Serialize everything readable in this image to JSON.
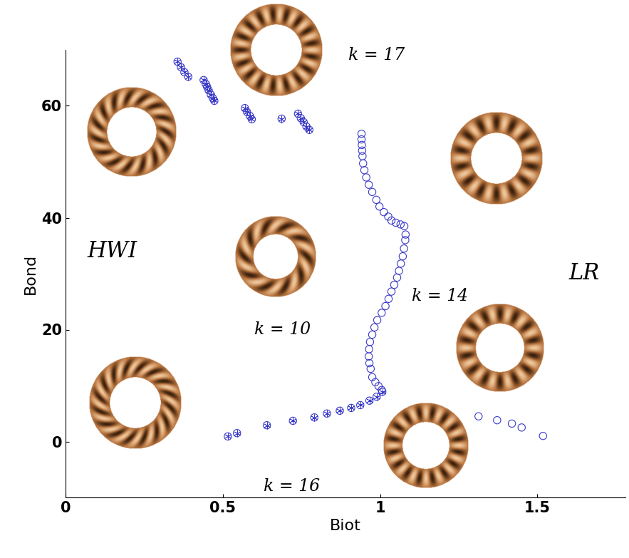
{
  "chart_data": {
    "type": "scatter",
    "x_label": "Biot",
    "y_label": "Bond",
    "xlim": [
      0,
      1.78
    ],
    "ylim": [
      -10,
      70
    ],
    "xticks": [
      0,
      0.5,
      1,
      1.5
    ],
    "yticks": [
      0,
      20,
      40,
      60
    ],
    "grid": false,
    "annotations": [
      "HWI",
      "LR",
      "k = 17",
      "k = 10",
      "k = 14",
      "k = 16"
    ],
    "series": [
      {
        "color": "#3a3ac8",
        "marker": "circle-asterisk",
        "x": [
          0.356,
          0.367,
          0.378,
          0.39,
          0.439,
          0.446,
          0.45,
          0.455,
          0.462,
          0.468,
          0.473,
          0.57,
          0.577,
          0.586,
          0.592,
          0.687,
          0.739,
          0.748,
          0.757,
          0.766,
          0.775,
          0.516,
          0.545,
          0.64,
          0.723,
          0.791,
          0.831,
          0.872,
          0.908,
          0.937,
          0.966,
          0.989,
          1.007
        ],
        "y": [
          67.9,
          66.9,
          66.0,
          65.2,
          64.6,
          63.9,
          63.4,
          62.8,
          62.0,
          61.4,
          60.9,
          59.6,
          58.9,
          58.2,
          57.6,
          57.7,
          58.6,
          57.8,
          57.1,
          56.3,
          55.7,
          0.9,
          1.5,
          2.9,
          3.7,
          4.3,
          5.0,
          5.5,
          6.0,
          6.5,
          7.3,
          8.0,
          8.9
        ]
      },
      {
        "color": "#3a3ac8",
        "marker": "circle",
        "x": [
          0.941,
          0.941,
          0.942,
          0.943,
          0.944,
          0.946,
          0.95,
          0.956,
          0.964,
          0.975,
          0.988,
          0.998,
          1.012,
          1.026,
          1.036,
          1.05,
          1.065,
          1.077,
          1.081,
          1.08,
          1.076,
          1.072,
          1.066,
          1.06,
          1.054,
          1.045,
          1.036,
          1.027,
          1.017,
          1.005,
          0.991,
          0.982,
          0.975,
          0.968,
          0.965,
          0.964,
          0.966,
          0.97,
          0.975,
          0.985,
          0.995,
          1.005
        ],
        "y": [
          55.0,
          54.0,
          53.0,
          52.0,
          51.0,
          49.7,
          48.5,
          47.2,
          45.9,
          44.6,
          43.2,
          42.0,
          41.0,
          40.2,
          39.5,
          39.1,
          38.8,
          38.5,
          37.0,
          36.0,
          34.5,
          33.1,
          31.8,
          30.5,
          29.3,
          28.0,
          26.8,
          25.5,
          24.2,
          23.0,
          21.7,
          20.4,
          19.1,
          17.8,
          16.5,
          15.2,
          14.0,
          13.0,
          11.5,
          10.6,
          9.9,
          9.2
        ]
      },
      {
        "color": "#3a3ac8",
        "marker": "circle",
        "x": [
          1.313,
          1.372,
          1.419,
          1.45,
          1.518
        ],
        "y": [
          4.5,
          3.8,
          3.2,
          2.5,
          1.0
        ]
      }
    ]
  }
}
